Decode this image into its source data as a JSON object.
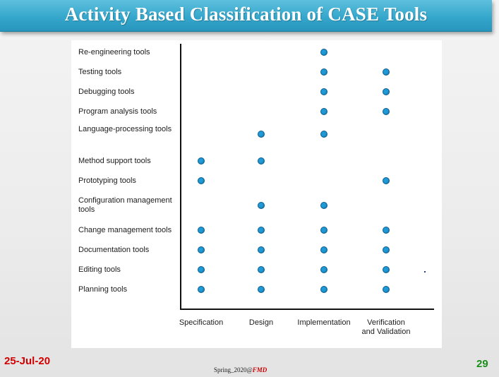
{
  "slide": {
    "title": "Activity Based Classification of CASE Tools",
    "date": "25-Jul-20",
    "footer_text": "Spring_2020@",
    "footer_brand": "FMD",
    "page_number": "29"
  },
  "chart_data": {
    "type": "scatter",
    "title": "",
    "categories_x": [
      "Specification",
      "Design",
      "Implementation",
      "Verification and Validation"
    ],
    "categories_y": [
      "Re-engineering tools",
      "Testing tools",
      "Debugging tools",
      "Program analysis tools",
      "Language-processing tools",
      "Method support tools",
      "Prototyping tools",
      "Configuration management tools",
      "Change management tools",
      "Documentation tools",
      "Editing tools",
      "Planning tools"
    ],
    "points": [
      {
        "tool": "Re-engineering tools",
        "activity": "Implementation"
      },
      {
        "tool": "Testing tools",
        "activity": "Implementation"
      },
      {
        "tool": "Testing tools",
        "activity": "Verification and Validation"
      },
      {
        "tool": "Debugging tools",
        "activity": "Implementation"
      },
      {
        "tool": "Debugging tools",
        "activity": "Verification and Validation"
      },
      {
        "tool": "Program analysis tools",
        "activity": "Implementation"
      },
      {
        "tool": "Program analysis tools",
        "activity": "Verification and Validation"
      },
      {
        "tool": "Language-processing tools",
        "activity": "Design"
      },
      {
        "tool": "Language-processing tools",
        "activity": "Implementation"
      },
      {
        "tool": "Method support tools",
        "activity": "Specification"
      },
      {
        "tool": "Method support tools",
        "activity": "Design"
      },
      {
        "tool": "Prototyping tools",
        "activity": "Specification"
      },
      {
        "tool": "Prototyping tools",
        "activity": "Verification and Validation"
      },
      {
        "tool": "Configuration management tools",
        "activity": "Design"
      },
      {
        "tool": "Configuration management tools",
        "activity": "Implementation"
      },
      {
        "tool": "Change management tools",
        "activity": "Specification"
      },
      {
        "tool": "Change management tools",
        "activity": "Design"
      },
      {
        "tool": "Change management tools",
        "activity": "Implementation"
      },
      {
        "tool": "Change management tools",
        "activity": "Verification and Validation"
      },
      {
        "tool": "Documentation tools",
        "activity": "Specification"
      },
      {
        "tool": "Documentation tools",
        "activity": "Design"
      },
      {
        "tool": "Documentation tools",
        "activity": "Implementation"
      },
      {
        "tool": "Documentation tools",
        "activity": "Verification and Validation"
      },
      {
        "tool": "Editing tools",
        "activity": "Specification"
      },
      {
        "tool": "Editing tools",
        "activity": "Design"
      },
      {
        "tool": "Editing tools",
        "activity": "Implementation"
      },
      {
        "tool": "Editing tools",
        "activity": "Verification and Validation"
      },
      {
        "tool": "Planning tools",
        "activity": "Specification"
      },
      {
        "tool": "Planning tools",
        "activity": "Design"
      },
      {
        "tool": "Planning tools",
        "activity": "Implementation"
      },
      {
        "tool": "Planning tools",
        "activity": "Verification and Validation"
      }
    ],
    "grid": false,
    "legend": "none",
    "colors": {
      "marker": "#1f9ad6",
      "axis": "#111111"
    }
  }
}
